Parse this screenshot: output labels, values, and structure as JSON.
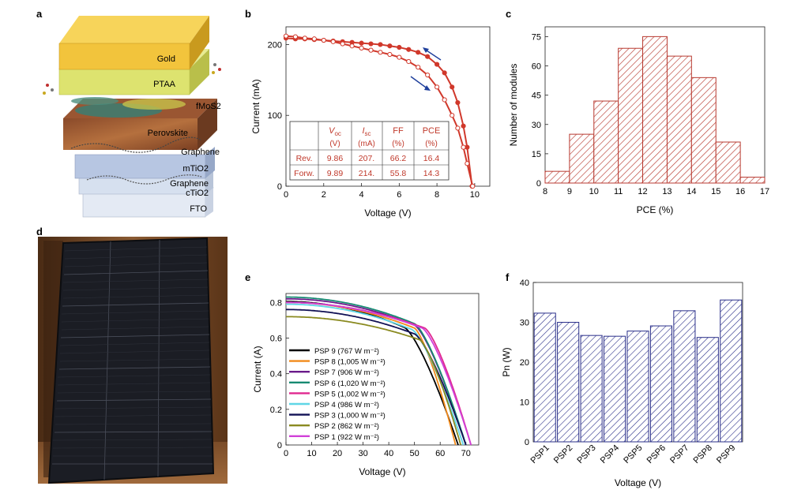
{
  "panel_letters": {
    "a": "a",
    "b": "b",
    "c": "c",
    "d": "d",
    "e": "e",
    "f": "f"
  },
  "panel_a": {
    "layers": [
      "Gold",
      "PTAA",
      "fMoS2",
      "Perovskite",
      "Graphene",
      "mTiO2",
      "Graphene",
      "cTiO2",
      "FTO"
    ],
    "colors": {
      "gold": "#f2c43c",
      "ptaa": "#dde36f",
      "perovskite": "#a9623a",
      "tio2": "#b7c6e2",
      "fto": "#e4eaf4"
    }
  },
  "panel_d": {
    "caption": "",
    "frame_color": "#1b1d24",
    "wall_color": "#6e4526"
  },
  "chart_data": [
    {
      "id": "b",
      "type": "line",
      "xlabel": "Voltage (V)",
      "ylabel": "Current (mA)",
      "xlim": [
        0,
        10.8
      ],
      "ylim": [
        0,
        225
      ],
      "xticks": [
        0,
        2,
        4,
        6,
        8,
        10
      ],
      "yticks": [
        0,
        100,
        200
      ],
      "grid": false,
      "series": [
        {
          "name": "Rev.",
          "x": [
            0,
            0.5,
            1,
            1.5,
            2,
            2.5,
            3,
            3.5,
            4,
            4.5,
            5,
            5.5,
            6,
            6.5,
            7,
            7.5,
            8,
            8.4,
            8.8,
            9.1,
            9.4,
            9.6,
            9.86
          ],
          "y": [
            209,
            208,
            208,
            207,
            206,
            205,
            204,
            203,
            202,
            201,
            200,
            198,
            196,
            193,
            189,
            183,
            172,
            160,
            140,
            118,
            85,
            55,
            0
          ],
          "color": "#d0382b"
        },
        {
          "name": "Forw.",
          "x": [
            0,
            0.5,
            1,
            1.5,
            2,
            2.5,
            3,
            3.5,
            4,
            4.5,
            5,
            5.5,
            6,
            6.5,
            7,
            7.5,
            8,
            8.4,
            8.8,
            9.1,
            9.4,
            9.6,
            9.89
          ],
          "y": [
            212,
            211,
            209,
            208,
            206,
            204,
            201,
            198,
            195,
            192,
            189,
            186,
            182,
            176,
            168,
            157,
            140,
            122,
            100,
            82,
            55,
            32,
            0
          ],
          "color": "#d0382b"
        }
      ],
      "table": {
        "headers": [
          {
            "main": "V",
            "sub": "oc"
          },
          {
            "main": "I",
            "sub": "sc"
          },
          {
            "main": "FF",
            "sub": ""
          },
          {
            "main": "PCE",
            "sub": ""
          }
        ],
        "units": [
          "(V)",
          "(mA)",
          "(%)",
          "(%)"
        ],
        "rows": [
          {
            "label": "Rev.",
            "values": [
              "9.86",
              "207.",
              "66.2",
              "16.4"
            ]
          },
          {
            "label": "Forw.",
            "values": [
              "9.89",
              "214.",
              "55.8",
              "14.3"
            ]
          }
        ]
      },
      "arrow_color": "#1f3f9c"
    },
    {
      "id": "c",
      "type": "bar",
      "xlabel": "PCE (%)",
      "ylabel": "Number of modules",
      "xlim": [
        8,
        17
      ],
      "ylim": [
        0,
        80
      ],
      "xticks": [
        8,
        9,
        10,
        11,
        12,
        13,
        14,
        15,
        16,
        17
      ],
      "yticks": [
        0,
        15,
        30,
        45,
        60,
        75
      ],
      "bin_edges": [
        8,
        9,
        10,
        11,
        12,
        13,
        14,
        15,
        16,
        17
      ],
      "values": [
        6,
        25,
        42,
        69,
        75,
        65,
        54,
        21,
        3
      ],
      "color": "#b83a30",
      "grid": false
    },
    {
      "id": "e",
      "type": "line",
      "xlabel": "Voltage (V)",
      "ylabel": "Current (A)",
      "xlim": [
        0,
        75
      ],
      "ylim": [
        0,
        0.85
      ],
      "xticks": [
        0,
        10,
        20,
        30,
        40,
        50,
        60,
        70
      ],
      "yticks": [
        0,
        0.2,
        0.4,
        0.6,
        0.8
      ],
      "grid": false,
      "legend_position": "bottom-left",
      "series": [
        {
          "name": "PSP 9 (767 W m⁻²)",
          "isc": 0.805,
          "voc": 67,
          "knee": 46,
          "color": "#000000"
        },
        {
          "name": "PSP 8 (1,005 W m⁻²)",
          "isc": 0.8,
          "voc": 66,
          "knee": 50,
          "color": "#f28a1a"
        },
        {
          "name": "PSP 7 (906 W m⁻²)",
          "isc": 0.82,
          "voc": 70,
          "knee": 50,
          "color": "#6a1a8a"
        },
        {
          "name": "PSP 6 (1,020 W m⁻²)",
          "isc": 0.83,
          "voc": 70,
          "knee": 50,
          "color": "#178a72"
        },
        {
          "name": "PSP 5 (1,002 W m⁻²)",
          "isc": 0.8,
          "voc": 72,
          "knee": 54,
          "color": "#e0288f"
        },
        {
          "name": "PSP 4 (986 W m⁻²)",
          "isc": 0.79,
          "voc": 69,
          "knee": 49,
          "color": "#5fd6e6"
        },
        {
          "name": "PSP 3 (1,000 W m⁻²)",
          "isc": 0.76,
          "voc": 70,
          "knee": 50,
          "color": "#111155"
        },
        {
          "name": "PSP 2 (862 W m⁻²)",
          "isc": 0.72,
          "voc": 68,
          "knee": 52,
          "color": "#8a8a20"
        },
        {
          "name": "PSP 1 (922 W m⁻²)",
          "isc": 0.8,
          "voc": 72,
          "knee": 53,
          "color": "#d040d8"
        }
      ]
    },
    {
      "id": "f",
      "type": "bar",
      "xlabel": "Voltage (V)",
      "ylabel": "Pn (W)",
      "ylim": [
        0,
        40
      ],
      "yticks": [
        0,
        10,
        20,
        30,
        40
      ],
      "categories": [
        "PSP1",
        "PSP2",
        "PSP3",
        "PSP4",
        "PSP5",
        "PSP6",
        "PSP7",
        "PSP8",
        "PSP9"
      ],
      "values": [
        32.3,
        30.0,
        26.7,
        26.5,
        27.8,
        29.1,
        32.9,
        26.2,
        35.6
      ],
      "color": "#2a2f8a",
      "grid": false
    }
  ]
}
